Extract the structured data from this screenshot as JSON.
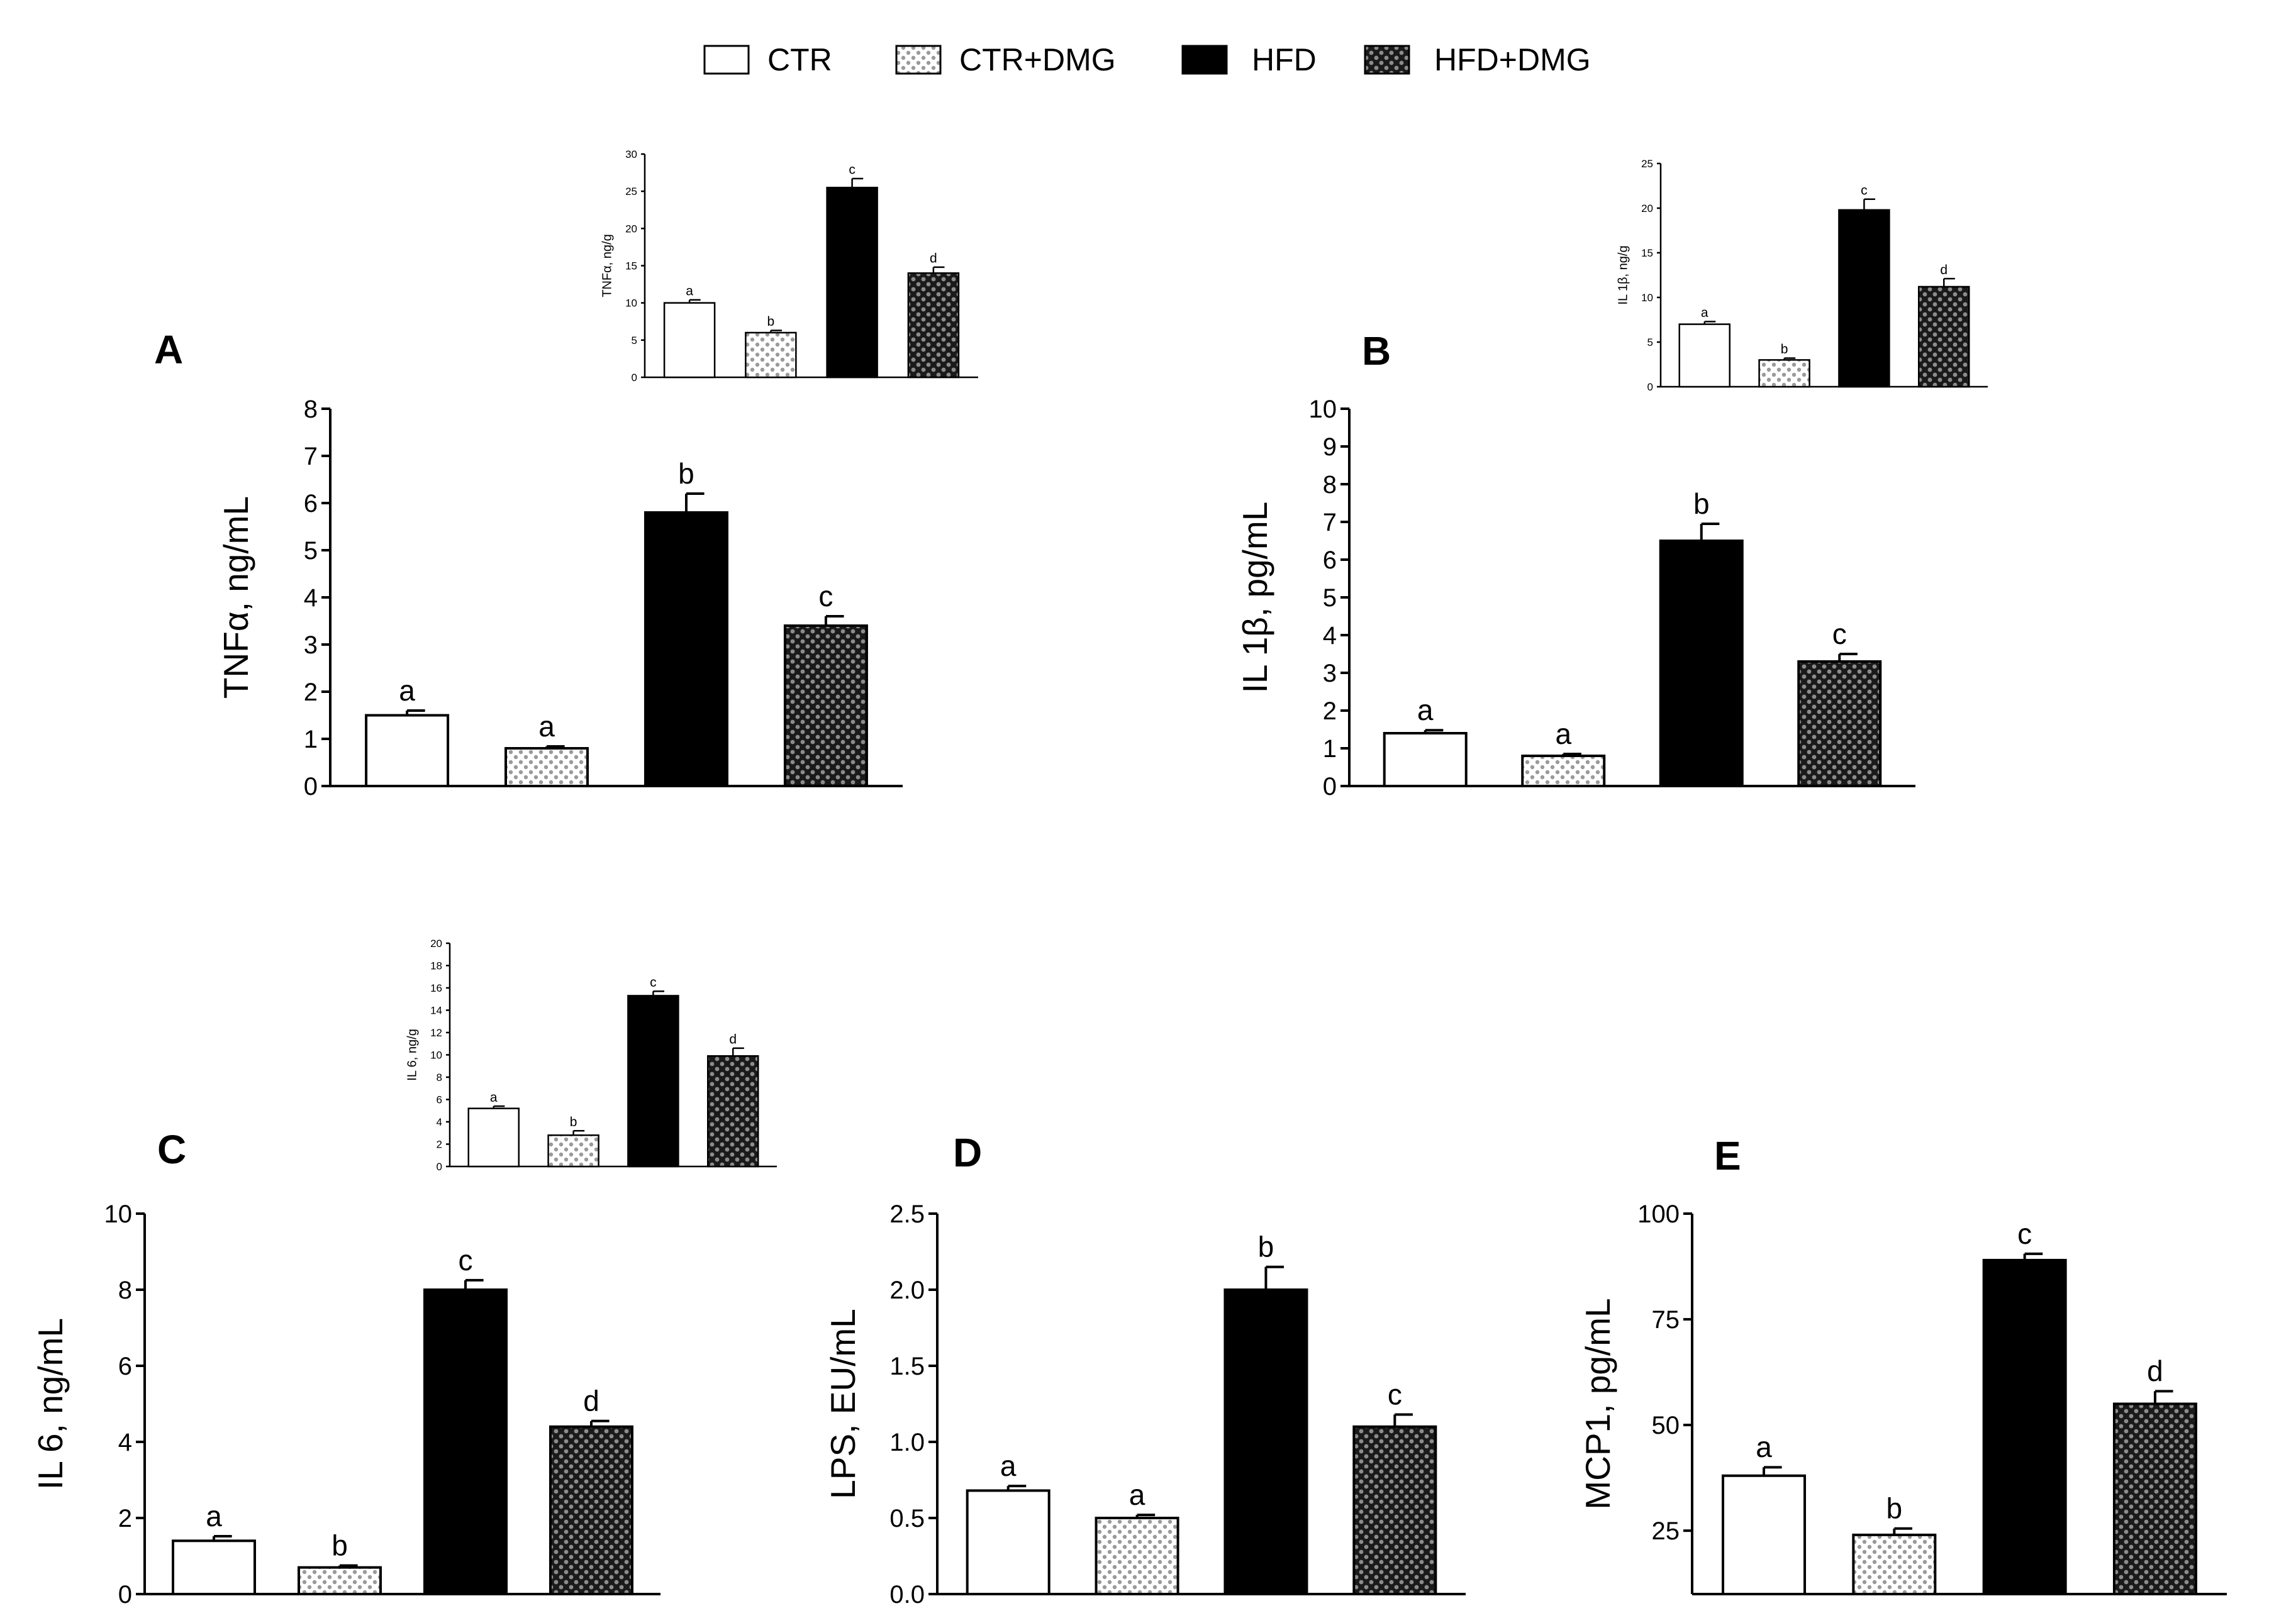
{
  "legend": {
    "position": "top-center",
    "items": [
      {
        "label": "CTR",
        "pattern": "white"
      },
      {
        "label": "CTR+DMG",
        "pattern": "light-dots"
      },
      {
        "label": "HFD",
        "pattern": "black"
      },
      {
        "label": "HFD+DMG",
        "pattern": "dark-dots"
      }
    ]
  },
  "colors": {
    "axis": "#000000",
    "ctr": "#ffffff",
    "light_dots": "#bdbdbd",
    "hfd": "#000000",
    "dark_dots": "#3a3a3a"
  },
  "chart_data": [
    {
      "id": "A-main",
      "panel": "A",
      "type": "bar",
      "categories": [
        "CTR",
        "CTR+DMG",
        "HFD",
        "HFD+DMG"
      ],
      "ylabel": "TNFα, ng/mL",
      "ylim": [
        0,
        8
      ],
      "yticks": [
        "0",
        "1",
        "2",
        "3",
        "4",
        "5",
        "6",
        "7",
        "8"
      ],
      "values": [
        1.5,
        0.8,
        5.8,
        3.4
      ],
      "errors": [
        0.1,
        0.04,
        0.4,
        0.2
      ],
      "letters": [
        "a",
        "a",
        "b",
        "c"
      ]
    },
    {
      "id": "A-inset",
      "panel": "A",
      "type": "bar",
      "categories": [
        "CTR",
        "CTR+DMG",
        "HFD",
        "HFD+DMG"
      ],
      "ylabel": "TNFα, ng/g",
      "ylim": [
        0,
        30
      ],
      "yticks": [
        "0",
        "5",
        "10",
        "15",
        "20",
        "25",
        "30"
      ],
      "values": [
        10,
        6,
        25.5,
        14
      ],
      "errors": [
        0.4,
        0.3,
        1.2,
        0.8
      ],
      "letters": [
        "a",
        "b",
        "c",
        "d"
      ]
    },
    {
      "id": "B-main",
      "panel": "B",
      "type": "bar",
      "categories": [
        "CTR",
        "CTR+DMG",
        "HFD",
        "HFD+DMG"
      ],
      "ylabel": "IL 1β, pg/mL",
      "ylim": [
        0,
        10
      ],
      "yticks": [
        "0",
        "1",
        "2",
        "3",
        "4",
        "5",
        "6",
        "7",
        "8",
        "9",
        "10"
      ],
      "values": [
        1.4,
        0.8,
        6.5,
        3.3
      ],
      "errors": [
        0.08,
        0.05,
        0.45,
        0.2
      ],
      "letters": [
        "a",
        "a",
        "b",
        "c"
      ]
    },
    {
      "id": "B-inset",
      "panel": "B",
      "type": "bar",
      "categories": [
        "CTR",
        "CTR+DMG",
        "HFD",
        "HFD+DMG"
      ],
      "ylabel": "IL 1β, ng/g",
      "ylim": [
        0,
        25
      ],
      "yticks": [
        "0",
        "5",
        "10",
        "15",
        "20",
        "25"
      ],
      "values": [
        7,
        3,
        19.8,
        11.2
      ],
      "errors": [
        0.3,
        0.2,
        1.2,
        0.9
      ],
      "letters": [
        "a",
        "b",
        "c",
        "d"
      ]
    },
    {
      "id": "C-main",
      "panel": "C",
      "type": "bar",
      "categories": [
        "CTR",
        "CTR+DMG",
        "HFD",
        "HFD+DMG"
      ],
      "ylabel": "IL 6, ng/mL",
      "ylim": [
        0,
        10
      ],
      "yticks": [
        "0",
        "2",
        "4",
        "6",
        "8",
        "10"
      ],
      "values": [
        1.4,
        0.7,
        8.0,
        4.4
      ],
      "errors": [
        0.12,
        0.05,
        0.25,
        0.15
      ],
      "letters": [
        "a",
        "b",
        "c",
        "d"
      ]
    },
    {
      "id": "C-inset",
      "panel": "C",
      "type": "bar",
      "categories": [
        "CTR",
        "CTR+DMG",
        "HFD",
        "HFD+DMG"
      ],
      "ylabel": "IL 6, ng/g",
      "ylim": [
        0,
        20
      ],
      "yticks": [
        "0",
        "2",
        "4",
        "6",
        "8",
        "10",
        "12",
        "14",
        "16",
        "18",
        "20"
      ],
      "values": [
        5.2,
        2.8,
        15.3,
        9.9
      ],
      "errors": [
        0.2,
        0.4,
        0.4,
        0.7
      ],
      "letters": [
        "a",
        "b",
        "c",
        "d"
      ]
    },
    {
      "id": "D-main",
      "panel": "D",
      "type": "bar",
      "categories": [
        "CTR",
        "CTR+DMG",
        "HFD",
        "HFD+DMG"
      ],
      "ylabel": "LPS, EU/mL",
      "ylim": [
        0,
        2.5
      ],
      "yticks": [
        "0.0",
        "0.5",
        "1.0",
        "1.5",
        "2.0",
        "2.5"
      ],
      "values": [
        0.68,
        0.5,
        2.0,
        1.1
      ],
      "errors": [
        0.03,
        0.02,
        0.15,
        0.08
      ],
      "letters": [
        "a",
        "a",
        "b",
        "c"
      ]
    },
    {
      "id": "E-main",
      "panel": "E",
      "type": "bar",
      "categories": [
        "CTR",
        "CTR+DMG",
        "HFD",
        "HFD+DMG"
      ],
      "ylabel": "MCP1, pg/mL",
      "ylim": [
        10,
        100
      ],
      "yticks": [
        "25",
        "50",
        "75",
        "100"
      ],
      "ytick_values": [
        25,
        50,
        75,
        100
      ],
      "values": [
        38,
        24,
        89,
        55
      ],
      "errors": [
        2,
        1.5,
        1.5,
        3
      ],
      "letters": [
        "a",
        "b",
        "c",
        "d"
      ]
    }
  ]
}
